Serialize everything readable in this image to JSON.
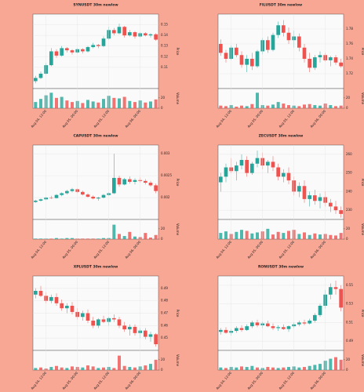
{
  "chart_data": [
    {
      "type": "candlestick",
      "title": "SYNUSDT 30m newlow",
      "y_label": "Price",
      "volume_label": "Volume",
      "up_color": "#26a69a",
      "down_color": "#ef5350",
      "categories": [
        null,
        null,
        "Aug 04, 12:00",
        null,
        null,
        null,
        null,
        null,
        "Aug 05, 00:00",
        null,
        null,
        null,
        null,
        null,
        "Aug 05, 12:00",
        null,
        null,
        null,
        null,
        null,
        "Aug 06, 00:00",
        null,
        null,
        null
      ],
      "ohlc": [
        [
          0.097,
          0.102,
          0.095,
          0.1
        ],
        [
          0.1,
          0.106,
          0.099,
          0.104
        ],
        [
          0.104,
          0.114,
          0.103,
          0.112
        ],
        [
          0.112,
          0.128,
          0.111,
          0.125
        ],
        [
          0.125,
          0.127,
          0.119,
          0.121
        ],
        [
          0.121,
          0.13,
          0.12,
          0.128
        ],
        [
          0.128,
          0.129,
          0.124,
          0.126
        ],
        [
          0.126,
          0.127,
          0.122,
          0.124
        ],
        [
          0.124,
          0.128,
          0.123,
          0.127
        ],
        [
          0.127,
          0.128,
          0.123,
          0.125
        ],
        [
          0.125,
          0.13,
          0.124,
          0.129
        ],
        [
          0.129,
          0.133,
          0.128,
          0.131
        ],
        [
          0.131,
          0.132,
          0.128,
          0.13
        ],
        [
          0.13,
          0.139,
          0.129,
          0.137
        ],
        [
          0.137,
          0.148,
          0.136,
          0.145
        ],
        [
          0.145,
          0.147,
          0.14,
          0.142
        ],
        [
          0.142,
          0.151,
          0.141,
          0.148
        ],
        [
          0.148,
          0.149,
          0.138,
          0.14
        ],
        [
          0.14,
          0.145,
          0.139,
          0.143
        ],
        [
          0.143,
          0.144,
          0.137,
          0.139
        ],
        [
          0.139,
          0.143,
          0.138,
          0.142
        ],
        [
          0.142,
          0.143,
          0.139,
          0.14
        ],
        [
          0.14,
          0.142,
          0.138,
          0.141
        ],
        [
          0.141,
          0.142,
          0.135,
          0.136
        ]
      ],
      "volume": [
        12,
        18,
        25,
        30,
        20,
        22,
        15,
        12,
        14,
        10,
        16,
        13,
        11,
        18,
        24,
        20,
        19,
        22,
        14,
        12,
        15,
        11,
        13,
        17
      ],
      "ylim": [
        0.09,
        0.16
      ],
      "yticks": [
        0.11,
        0.12,
        0.13,
        0.14,
        0.15
      ],
      "volume_ylim": [
        0,
        35
      ],
      "volume_yticks": [
        0,
        20
      ]
    },
    {
      "type": "candlestick",
      "title": "FILUSDT 30m newlow",
      "y_label": "Price",
      "volume_label": "Volume",
      "up_color": "#26a69a",
      "down_color": "#ef5350",
      "categories": [
        null,
        null,
        "Aug 04, 12:00",
        null,
        null,
        null,
        null,
        null,
        "Aug 05, 00:00",
        null,
        null,
        null,
        null,
        null,
        "Aug 05, 12:00",
        null,
        null,
        null,
        null,
        null,
        "Aug 06, 00:00",
        null,
        null,
        null
      ],
      "ohlc": [
        [
          1.76,
          1.766,
          1.744,
          1.748
        ],
        [
          1.748,
          1.752,
          1.735,
          1.74
        ],
        [
          1.74,
          1.758,
          1.738,
          1.755
        ],
        [
          1.755,
          1.76,
          1.742,
          1.745
        ],
        [
          1.745,
          1.75,
          1.728,
          1.732
        ],
        [
          1.732,
          1.745,
          1.722,
          1.74
        ],
        [
          1.74,
          1.748,
          1.725,
          1.73
        ],
        [
          1.73,
          1.752,
          1.728,
          1.75
        ],
        [
          1.75,
          1.768,
          1.746,
          1.765
        ],
        [
          1.765,
          1.77,
          1.748,
          1.752
        ],
        [
          1.752,
          1.775,
          1.75,
          1.772
        ],
        [
          1.772,
          1.79,
          1.768,
          1.785
        ],
        [
          1.785,
          1.792,
          1.77,
          1.775
        ],
        [
          1.775,
          1.782,
          1.76,
          1.765
        ],
        [
          1.765,
          1.778,
          1.755,
          1.77
        ],
        [
          1.77,
          1.774,
          1.75,
          1.755
        ],
        [
          1.755,
          1.76,
          1.735,
          1.74
        ],
        [
          1.74,
          1.748,
          1.722,
          1.728
        ],
        [
          1.728,
          1.745,
          1.725,
          1.742
        ],
        [
          1.742,
          1.75,
          1.735,
          1.745
        ],
        [
          1.745,
          1.748,
          1.736,
          1.738
        ],
        [
          1.738,
          1.744,
          1.73,
          1.742
        ],
        [
          1.742,
          1.745,
          1.732,
          1.735
        ],
        [
          1.735,
          1.74,
          1.728,
          1.73
        ]
      ],
      "volume": [
        5,
        4,
        6,
        3,
        5,
        4,
        8,
        30,
        6,
        5,
        7,
        12,
        9,
        6,
        5,
        4,
        7,
        8,
        6,
        5,
        9,
        6,
        4,
        5
      ],
      "ylim": [
        1.7,
        1.8
      ],
      "yticks": [
        1.72,
        1.74,
        1.76,
        1.78
      ],
      "volume_ylim": [
        0,
        35
      ],
      "volume_yticks": [
        0,
        20
      ]
    },
    {
      "type": "candlestick",
      "title": "CAPUSDT 30m newlow",
      "y_label": "Price",
      "volume_label": "Volume",
      "up_color": "#26a69a",
      "down_color": "#ef5350",
      "categories": [
        null,
        null,
        "Aug 04, 12:00",
        null,
        null,
        null,
        null,
        null,
        "Aug 05, 00:00",
        null,
        null,
        null,
        null,
        null,
        "Aug 05, 12:00",
        null,
        null,
        null,
        null,
        null,
        "Aug 06, 00:00",
        null,
        null,
        null
      ],
      "ohlc": [
        [
          0.0019,
          0.00195,
          0.00188,
          0.00193
        ],
        [
          0.00193,
          0.00198,
          0.00191,
          0.00196
        ],
        [
          0.00196,
          0.00202,
          0.00194,
          0.002
        ],
        [
          0.002,
          0.00204,
          0.00197,
          0.00199
        ],
        [
          0.00199,
          0.00208,
          0.00198,
          0.00206
        ],
        [
          0.00206,
          0.00212,
          0.00203,
          0.0021
        ],
        [
          0.0021,
          0.00218,
          0.00207,
          0.00215
        ],
        [
          0.00215,
          0.00222,
          0.00212,
          0.00219
        ],
        [
          0.00219,
          0.00221,
          0.0021,
          0.00213
        ],
        [
          0.00213,
          0.00216,
          0.00205,
          0.00207
        ],
        [
          0.00207,
          0.0021,
          0.002,
          0.00202
        ],
        [
          0.00202,
          0.00205,
          0.00196,
          0.00198
        ],
        [
          0.00198,
          0.00202,
          0.00193,
          0.002
        ],
        [
          0.002,
          0.00208,
          0.00198,
          0.00206
        ],
        [
          0.00206,
          0.00212,
          0.00204,
          0.0021
        ],
        [
          0.0021,
          0.003,
          0.00208,
          0.00245
        ],
        [
          0.00245,
          0.0025,
          0.00225,
          0.0023
        ],
        [
          0.0023,
          0.00245,
          0.00228,
          0.00242
        ],
        [
          0.00242,
          0.00248,
          0.00232,
          0.00236
        ],
        [
          0.00236,
          0.00244,
          0.0023,
          0.0024
        ],
        [
          0.0024,
          0.00246,
          0.00234,
          0.00238
        ],
        [
          0.00238,
          0.00242,
          0.0023,
          0.00234
        ],
        [
          0.00234,
          0.00238,
          0.00225,
          0.00228
        ],
        [
          0.00228,
          0.00232,
          0.0021,
          0.00215
        ]
      ],
      "volume": [
        1,
        1,
        1,
        1,
        2,
        1,
        2,
        2,
        1,
        1,
        1,
        1,
        1,
        2,
        2,
        28,
        10,
        6,
        14,
        5,
        4,
        12,
        3,
        8
      ],
      "ylim": [
        0.0015,
        0.0032
      ],
      "yticks": [
        0.002,
        0.0025,
        0.003
      ],
      "volume_ylim": [
        0,
        35
      ],
      "volume_yticks": [
        0,
        20
      ]
    },
    {
      "type": "candlestick",
      "title": "ZECUSDT 30m newlow",
      "y_label": "Price",
      "volume_label": "Volume",
      "up_color": "#26a69a",
      "down_color": "#ef5350",
      "categories": [
        null,
        null,
        "Aug 04, 12:00",
        null,
        null,
        null,
        null,
        null,
        "Aug 05, 00:00",
        null,
        null,
        null,
        null,
        null,
        "Aug 05, 12:00",
        null,
        null,
        null,
        null,
        null,
        "Aug 06, 00:00",
        null,
        null,
        null
      ],
      "ohlc": [
        [
          245,
          250,
          240,
          248
        ],
        [
          248,
          255,
          245,
          253
        ],
        [
          253,
          258,
          250,
          251
        ],
        [
          251,
          256,
          246,
          254
        ],
        [
          254,
          260,
          252,
          257
        ],
        [
          257,
          259,
          248,
          250
        ],
        [
          250,
          256,
          249,
          255
        ],
        [
          255,
          262,
          253,
          258
        ],
        [
          258,
          261,
          252,
          254
        ],
        [
          254,
          257,
          250,
          256
        ],
        [
          256,
          259,
          251,
          253
        ],
        [
          253,
          255,
          246,
          248
        ],
        [
          248,
          252,
          245,
          250
        ],
        [
          250,
          253,
          244,
          246
        ],
        [
          246,
          248,
          238,
          240
        ],
        [
          240,
          245,
          237,
          243
        ],
        [
          243,
          246,
          234,
          236
        ],
        [
          236,
          240,
          232,
          238
        ],
        [
          238,
          241,
          233,
          235
        ],
        [
          235,
          239,
          231,
          237
        ],
        [
          237,
          240,
          232,
          234
        ],
        [
          234,
          236,
          229,
          232
        ],
        [
          232,
          235,
          228,
          230
        ],
        [
          230,
          232,
          226,
          228
        ]
      ],
      "volume": [
        12,
        15,
        10,
        14,
        18,
        16,
        11,
        13,
        15,
        20,
        9,
        14,
        12,
        16,
        18,
        10,
        13,
        8,
        11,
        9,
        10,
        8,
        7,
        12
      ],
      "ylim": [
        225,
        265
      ],
      "yticks": [
        230,
        240,
        250,
        260
      ],
      "volume_ylim": [
        0,
        35
      ],
      "volume_yticks": [
        0,
        20
      ]
    },
    {
      "type": "candlestick",
      "title": "XPLUSDT 30m newlow",
      "y_label": "Price",
      "volume_label": "Volume",
      "up_color": "#26a69a",
      "down_color": "#ef5350",
      "categories": [
        null,
        null,
        "Aug 04, 12:00",
        null,
        null,
        null,
        null,
        null,
        "Aug 05, 00:00",
        null,
        null,
        null,
        null,
        null,
        "Aug 05, 12:00",
        null,
        null,
        null,
        null,
        null,
        "Aug 06, 00:00",
        null,
        null,
        null
      ],
      "ohlc": [
        [
          0.485,
          0.49,
          0.482,
          0.488
        ],
        [
          0.488,
          0.492,
          0.483,
          0.484
        ],
        [
          0.484,
          0.487,
          0.478,
          0.48
        ],
        [
          0.48,
          0.485,
          0.478,
          0.483
        ],
        [
          0.483,
          0.486,
          0.476,
          0.478
        ],
        [
          0.478,
          0.481,
          0.472,
          0.474
        ],
        [
          0.474,
          0.478,
          0.47,
          0.476
        ],
        [
          0.476,
          0.479,
          0.469,
          0.471
        ],
        [
          0.471,
          0.474,
          0.465,
          0.467
        ],
        [
          0.467,
          0.472,
          0.464,
          0.47
        ],
        [
          0.47,
          0.473,
          0.462,
          0.464
        ],
        [
          0.464,
          0.467,
          0.458,
          0.46
        ],
        [
          0.46,
          0.466,
          0.458,
          0.465
        ],
        [
          0.465,
          0.468,
          0.462,
          0.463
        ],
        [
          0.463,
          0.467,
          0.46,
          0.466
        ],
        [
          0.466,
          0.469,
          0.463,
          0.465
        ],
        [
          0.465,
          0.467,
          0.458,
          0.46
        ],
        [
          0.46,
          0.463,
          0.455,
          0.457
        ],
        [
          0.457,
          0.461,
          0.452,
          0.459
        ],
        [
          0.459,
          0.461,
          0.452,
          0.454
        ],
        [
          0.454,
          0.458,
          0.45,
          0.456
        ],
        [
          0.456,
          0.458,
          0.449,
          0.451
        ],
        [
          0.451,
          0.455,
          0.447,
          0.453
        ],
        [
          0.453,
          0.454,
          0.443,
          0.445
        ]
      ],
      "volume": [
        4,
        5,
        3,
        6,
        8,
        5,
        4,
        7,
        6,
        5,
        9,
        7,
        4,
        5,
        6,
        4,
        28,
        8,
        6,
        5,
        7,
        9,
        12,
        20
      ],
      "ylim": [
        0.44,
        0.5
      ],
      "yticks": [
        0.45,
        0.46,
        0.47,
        0.48,
        0.49
      ],
      "volume_ylim": [
        0,
        35
      ],
      "volume_yticks": [
        0,
        20
      ]
    },
    {
      "type": "candlestick",
      "title": "RONUSDT 30m newlow",
      "y_label": "Price",
      "volume_label": "Volume",
      "up_color": "#26a69a",
      "down_color": "#ef5350",
      "categories": [
        null,
        null,
        "Aug 04, 12:00",
        null,
        null,
        null,
        null,
        null,
        "Aug 05, 00:00",
        null,
        null,
        null,
        null,
        null,
        "Aug 05, 12:00",
        null,
        null,
        null,
        null,
        null,
        "Aug 06, 00:00",
        null,
        null,
        null
      ],
      "ohlc": [
        [
          0.5,
          0.504,
          0.497,
          0.502
        ],
        [
          0.502,
          0.505,
          0.498,
          0.499
        ],
        [
          0.499,
          0.503,
          0.496,
          0.501
        ],
        [
          0.501,
          0.506,
          0.499,
          0.504
        ],
        [
          0.504,
          0.507,
          0.5,
          0.502
        ],
        [
          0.502,
          0.508,
          0.501,
          0.506
        ],
        [
          0.506,
          0.512,
          0.504,
          0.51
        ],
        [
          0.51,
          0.513,
          0.505,
          0.507
        ],
        [
          0.507,
          0.511,
          0.504,
          0.509
        ],
        [
          0.509,
          0.512,
          0.505,
          0.506
        ],
        [
          0.506,
          0.509,
          0.502,
          0.504
        ],
        [
          0.504,
          0.507,
          0.501,
          0.505
        ],
        [
          0.505,
          0.508,
          0.502,
          0.503
        ],
        [
          0.503,
          0.507,
          0.5,
          0.506
        ],
        [
          0.506,
          0.51,
          0.504,
          0.508
        ],
        [
          0.508,
          0.512,
          0.506,
          0.51
        ],
        [
          0.51,
          0.513,
          0.507,
          0.509
        ],
        [
          0.509,
          0.514,
          0.508,
          0.512
        ],
        [
          0.512,
          0.52,
          0.51,
          0.518
        ],
        [
          0.518,
          0.53,
          0.516,
          0.528
        ],
        [
          0.528,
          0.545,
          0.525,
          0.54
        ],
        [
          0.54,
          0.552,
          0.535,
          0.548
        ],
        [
          0.548,
          0.555,
          0.54,
          0.546
        ],
        [
          0.546,
          0.55,
          0.522,
          0.526
        ]
      ],
      "volume": [
        5,
        4,
        6,
        5,
        7,
        6,
        8,
        5,
        4,
        6,
        5,
        4,
        5,
        6,
        7,
        5,
        6,
        8,
        10,
        12,
        18,
        22,
        25,
        20
      ],
      "ylim": [
        0.48,
        0.56
      ],
      "yticks": [
        0.49,
        0.51,
        0.53,
        0.55
      ],
      "volume_ylim": [
        0,
        35
      ],
      "volume_yticks": [
        0,
        20
      ]
    }
  ]
}
